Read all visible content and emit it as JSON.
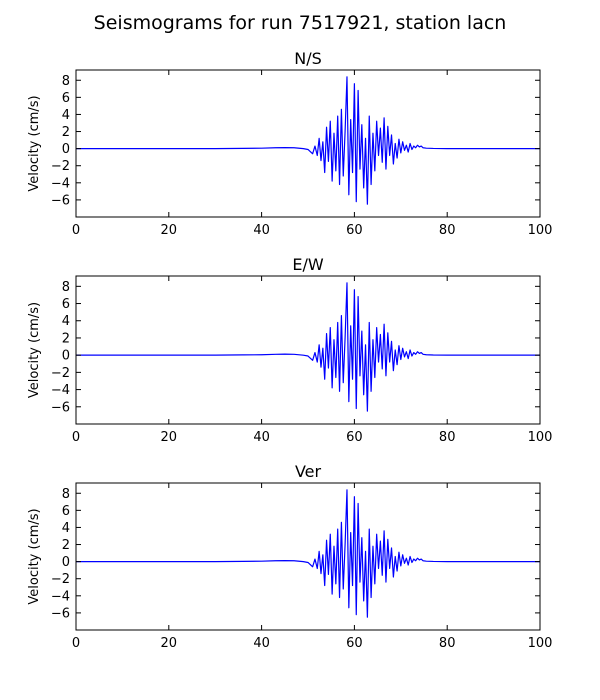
{
  "figure": {
    "suptitle": "Seismograms for run 7517921, station lacn"
  },
  "style": {
    "line_color": "#0000ff"
  },
  "chart_data": [
    {
      "type": "line",
      "title": "N/S",
      "xlabel": "",
      "ylabel": "Velocity (cm/s)",
      "xlim": [
        0,
        100
      ],
      "ylim": [
        -8,
        9.2
      ],
      "xticks": [
        0,
        20,
        40,
        60,
        80,
        100
      ],
      "yticks": [
        -6,
        -4,
        -2,
        0,
        2,
        4,
        6,
        8
      ],
      "grid": false,
      "series": [
        {
          "x": [
            0,
            10,
            20,
            30,
            36,
            40,
            43,
            45,
            47,
            49,
            50,
            51,
            51.5,
            52,
            52.4,
            52.8,
            53.2,
            53.6,
            54,
            54.4,
            54.8,
            55.2,
            55.6,
            56,
            56.4,
            56.8,
            57.2,
            57.6,
            58,
            58.4,
            58.8,
            59.2,
            59.6,
            60,
            60.4,
            60.8,
            61.2,
            61.6,
            62,
            62.4,
            62.8,
            63.2,
            63.6,
            64,
            64.4,
            64.8,
            65.2,
            65.6,
            66,
            66.4,
            66.8,
            67.2,
            67.6,
            68,
            68.4,
            68.8,
            69.2,
            69.6,
            70,
            70.4,
            70.8,
            71.2,
            71.6,
            72,
            72.4,
            72.8,
            73.2,
            73.6,
            74,
            74.4,
            74.8,
            75.5,
            77,
            80,
            85,
            90,
            100
          ],
          "y": [
            0,
            0,
            0,
            0,
            0.03,
            0.05,
            0.1,
            0.12,
            0.1,
            0,
            -0.1,
            -0.6,
            0.3,
            -0.8,
            1.2,
            -1.4,
            0.8,
            -2.8,
            2.5,
            -1.5,
            3.2,
            -3.8,
            1.8,
            -2.6,
            3.8,
            -4.2,
            4.6,
            -3.2,
            2.1,
            8.4,
            -5.4,
            3.4,
            -2.8,
            7.6,
            -6.2,
            6.8,
            -2.4,
            2.8,
            -4.6,
            1.2,
            -6.5,
            3.8,
            -4.2,
            1.8,
            -2.6,
            3.2,
            -0.8,
            2.4,
            -1.6,
            3.6,
            -2.4,
            2.6,
            -0.8,
            1.6,
            -1.8,
            0.6,
            -1.1,
            1.1,
            -0.5,
            0.8,
            -0.2,
            0.4,
            -0.4,
            0.6,
            -0.1,
            0.3,
            0.1,
            0.4,
            0.2,
            0.3,
            0.1,
            0.05,
            0.02,
            0,
            0,
            0,
            0
          ]
        }
      ]
    },
    {
      "type": "line",
      "title": "E/W",
      "xlabel": "",
      "ylabel": "Velocity (cm/s)",
      "xlim": [
        0,
        100
      ],
      "ylim": [
        -8,
        9.2
      ],
      "xticks": [
        0,
        20,
        40,
        60,
        80,
        100
      ],
      "yticks": [
        -6,
        -4,
        -2,
        0,
        2,
        4,
        6,
        8
      ],
      "grid": false,
      "series": [
        {
          "x": [
            0,
            10,
            20,
            30,
            36,
            40,
            43,
            45,
            47,
            49,
            50,
            51,
            51.5,
            52,
            52.4,
            52.8,
            53.2,
            53.6,
            54,
            54.4,
            54.8,
            55.2,
            55.6,
            56,
            56.4,
            56.8,
            57.2,
            57.6,
            58,
            58.4,
            58.8,
            59.2,
            59.6,
            60,
            60.4,
            60.8,
            61.2,
            61.6,
            62,
            62.4,
            62.8,
            63.2,
            63.6,
            64,
            64.4,
            64.8,
            65.2,
            65.6,
            66,
            66.4,
            66.8,
            67.2,
            67.6,
            68,
            68.4,
            68.8,
            69.2,
            69.6,
            70,
            70.4,
            70.8,
            71.2,
            71.6,
            72,
            72.4,
            72.8,
            73.2,
            73.6,
            74,
            74.4,
            74.8,
            75.5,
            77,
            80,
            85,
            90,
            100
          ],
          "y": [
            0,
            0,
            0,
            0,
            0.03,
            0.05,
            0.1,
            0.12,
            0.1,
            0,
            -0.1,
            -0.6,
            0.3,
            -0.8,
            1.2,
            -1.4,
            0.8,
            -2.8,
            2.5,
            -1.5,
            3.2,
            -3.8,
            1.8,
            -2.6,
            3.8,
            -4.2,
            4.6,
            -3.2,
            2.1,
            8.4,
            -5.4,
            3.4,
            -2.8,
            7.6,
            -6.2,
            6.8,
            -2.4,
            2.8,
            -4.6,
            1.2,
            -6.5,
            3.8,
            -4.2,
            1.8,
            -2.6,
            3.2,
            -0.8,
            2.4,
            -1.6,
            3.6,
            -2.4,
            2.6,
            -0.8,
            1.6,
            -1.8,
            0.6,
            -1.1,
            1.1,
            -0.5,
            0.8,
            -0.2,
            0.4,
            -0.4,
            0.6,
            -0.1,
            0.3,
            0.1,
            0.4,
            0.2,
            0.3,
            0.1,
            0.05,
            0.02,
            0,
            0,
            0,
            0
          ]
        }
      ]
    },
    {
      "type": "line",
      "title": "Ver",
      "xlabel": "",
      "ylabel": "Velocity (cm/s)",
      "xlim": [
        0,
        100
      ],
      "ylim": [
        -8,
        9.2
      ],
      "xticks": [
        0,
        20,
        40,
        60,
        80,
        100
      ],
      "yticks": [
        -6,
        -4,
        -2,
        0,
        2,
        4,
        6,
        8
      ],
      "grid": false,
      "series": [
        {
          "x": [
            0,
            10,
            20,
            30,
            36,
            40,
            43,
            45,
            47,
            49,
            50,
            51,
            51.5,
            52,
            52.4,
            52.8,
            53.2,
            53.6,
            54,
            54.4,
            54.8,
            55.2,
            55.6,
            56,
            56.4,
            56.8,
            57.2,
            57.6,
            58,
            58.4,
            58.8,
            59.2,
            59.6,
            60,
            60.4,
            60.8,
            61.2,
            61.6,
            62,
            62.4,
            62.8,
            63.2,
            63.6,
            64,
            64.4,
            64.8,
            65.2,
            65.6,
            66,
            66.4,
            66.8,
            67.2,
            67.6,
            68,
            68.4,
            68.8,
            69.2,
            69.6,
            70,
            70.4,
            70.8,
            71.2,
            71.6,
            72,
            72.4,
            72.8,
            73.2,
            73.6,
            74,
            74.4,
            74.8,
            75.5,
            77,
            80,
            85,
            90,
            100
          ],
          "y": [
            0,
            0,
            0,
            0,
            0.03,
            0.05,
            0.1,
            0.12,
            0.1,
            0,
            -0.1,
            -0.6,
            0.3,
            -0.8,
            1.2,
            -1.4,
            0.8,
            -2.8,
            2.5,
            -1.5,
            3.2,
            -3.8,
            1.8,
            -2.6,
            3.8,
            -4.2,
            4.6,
            -3.2,
            2.1,
            8.4,
            -5.4,
            3.4,
            -2.8,
            7.6,
            -6.2,
            6.8,
            -2.4,
            2.8,
            -4.6,
            1.2,
            -6.5,
            3.8,
            -4.2,
            1.8,
            -2.6,
            3.2,
            -0.8,
            2.4,
            -1.6,
            3.6,
            -2.4,
            2.6,
            -0.8,
            1.6,
            -1.8,
            0.6,
            -1.1,
            1.1,
            -0.5,
            0.8,
            -0.2,
            0.4,
            -0.4,
            0.6,
            -0.1,
            0.3,
            0.1,
            0.4,
            0.2,
            0.3,
            0.1,
            0.05,
            0.02,
            0,
            0,
            0,
            0
          ]
        }
      ]
    }
  ]
}
